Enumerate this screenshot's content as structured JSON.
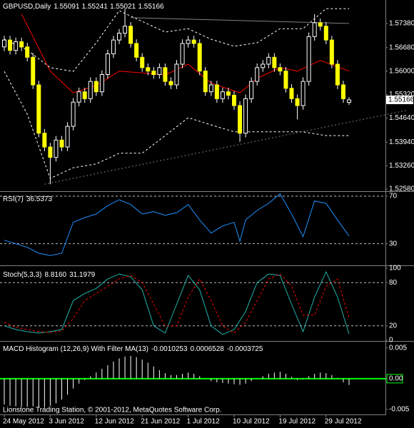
{
  "chart_data": [
    {
      "type": "candlestick",
      "title": "GBPUSD,Daily",
      "categories": [
        "24 May 2012",
        null,
        null,
        null,
        null,
        null,
        null,
        null,
        "3 Jun 2012",
        null,
        null,
        null,
        null,
        null,
        null,
        null,
        "12 Jun 2012",
        null,
        null,
        null,
        null,
        null,
        null,
        null,
        "21 Jun 2012",
        null,
        null,
        null,
        null,
        null,
        null,
        null,
        "1 Jul 2012",
        null,
        null,
        null,
        null,
        null,
        null,
        null,
        "10 Jul 2012",
        null,
        null,
        null,
        null,
        null,
        null,
        null,
        "19 Jul 2012",
        null,
        null,
        null,
        null,
        null,
        null,
        null,
        "29 Jul 2012",
        null,
        null,
        null,
        null
      ],
      "opens": [
        1.567,
        1.569,
        1.566,
        1.5685,
        1.567,
        1.564,
        1.556,
        1.542,
        1.538,
        1.535,
        1.54,
        1.538,
        1.544,
        1.551,
        1.554,
        1.552,
        1.557,
        1.554,
        1.559,
        1.565,
        1.569,
        1.571,
        1.573,
        1.568,
        1.564,
        1.561,
        1.56,
        1.559,
        1.561,
        1.557,
        1.556,
        1.562,
        1.568,
        1.569,
        1.568,
        1.56,
        1.554,
        1.556,
        1.552,
        1.554,
        1.553,
        1.55,
        1.542,
        1.552,
        1.557,
        1.561,
        1.562,
        1.564,
        1.561,
        1.56,
        1.555,
        1.552,
        1.55,
        1.557,
        1.57,
        1.574,
        1.573,
        1.569,
        1.562,
        1.556,
        1.55091
      ],
      "highs": [
        1.5702,
        1.5702,
        1.5697,
        1.5697,
        1.5682,
        1.5652,
        1.5572,
        1.5432,
        1.5392,
        1.5412,
        1.5412,
        1.5452,
        1.5522,
        1.5552,
        1.5552,
        1.5582,
        1.5582,
        1.5602,
        1.5662,
        1.5702,
        1.5722,
        1.578,
        1.5742,
        1.5692,
        1.5652,
        1.5622,
        1.5612,
        1.5622,
        1.5622,
        1.5582,
        1.5632,
        1.5692,
        1.5702,
        1.5702,
        1.5692,
        1.5612,
        1.5572,
        1.5572,
        1.5552,
        1.5552,
        1.5542,
        1.5512,
        1.5532,
        1.5582,
        1.5622,
        1.5632,
        1.5652,
        1.5652,
        1.5622,
        1.5612,
        1.5562,
        1.5532,
        1.5582,
        1.5712,
        1.5765,
        1.5752,
        1.5742,
        1.5702,
        1.5632,
        1.5572,
        1.55241
      ],
      "lows": [
        1.5658,
        1.5648,
        1.5648,
        1.5658,
        1.5628,
        1.5548,
        1.5408,
        1.5368,
        1.5272,
        1.5338,
        1.5368,
        1.5368,
        1.5428,
        1.5498,
        1.5508,
        1.5508,
        1.5528,
        1.5528,
        1.5578,
        1.5638,
        1.5678,
        1.5698,
        1.5668,
        1.5628,
        1.5598,
        1.5588,
        1.5578,
        1.5578,
        1.5558,
        1.5548,
        1.5548,
        1.5608,
        1.5668,
        1.5668,
        1.5588,
        1.5528,
        1.5528,
        1.5508,
        1.5508,
        1.5518,
        1.5488,
        1.5395,
        1.5408,
        1.5508,
        1.5558,
        1.5598,
        1.5608,
        1.5598,
        1.5588,
        1.5538,
        1.5508,
        1.546,
        1.5488,
        1.5558,
        1.5688,
        1.5718,
        1.5678,
        1.5608,
        1.5548,
        1.5508,
        1.55021
      ],
      "closes": [
        1.569,
        1.566,
        1.5685,
        1.567,
        1.564,
        1.556,
        1.542,
        1.538,
        1.535,
        1.54,
        1.538,
        1.544,
        1.551,
        1.554,
        1.552,
        1.557,
        1.554,
        1.559,
        1.565,
        1.569,
        1.571,
        1.573,
        1.568,
        1.564,
        1.561,
        1.56,
        1.559,
        1.561,
        1.557,
        1.556,
        1.562,
        1.568,
        1.569,
        1.568,
        1.56,
        1.554,
        1.556,
        1.552,
        1.554,
        1.553,
        1.55,
        1.542,
        1.552,
        1.557,
        1.561,
        1.562,
        1.564,
        1.561,
        1.56,
        1.555,
        1.552,
        1.55,
        1.557,
        1.57,
        1.574,
        1.573,
        1.569,
        1.562,
        1.556,
        1.552,
        1.55166
      ],
      "up_color": "#000000",
      "down_color": "#ffff00",
      "wick_color": "#ffffff",
      "overlays": [
        {
          "color": "#ff0000",
          "style": "solid",
          "x": [
            3,
            8,
            12,
            16,
            20,
            24,
            28,
            32,
            36,
            41,
            44,
            48,
            51,
            55,
            60
          ],
          "values": [
            1.5765,
            1.56,
            1.5537,
            1.5558,
            1.56,
            1.5595,
            1.5589,
            1.562,
            1.5565,
            1.5537,
            1.5579,
            1.561,
            1.56,
            1.5631,
            1.56
          ]
        },
        {
          "color": "#ffffff",
          "style": "dashed",
          "x": [
            0,
            4,
            8,
            12,
            16,
            20,
            24,
            28,
            32,
            36,
            40,
            44,
            48,
            52,
            56,
            60
          ],
          "values": [
            1.5692,
            1.5661,
            1.561,
            1.5599,
            1.5682,
            1.5775,
            1.5744,
            1.5713,
            1.5723,
            1.5692,
            1.5672,
            1.5682,
            1.5723,
            1.5723,
            1.5781,
            1.5781
          ]
        },
        {
          "color": "#ffffff",
          "style": "dashed",
          "x": [
            0,
            4,
            8,
            12,
            16,
            20,
            24,
            28,
            32,
            36,
            40,
            44,
            48,
            52,
            56,
            60
          ],
          "values": [
            1.5599,
            1.5475,
            1.5289,
            1.532,
            1.5331,
            1.5362,
            1.5362,
            1.5413,
            1.5465,
            1.5444,
            1.5424,
            1.5424,
            1.5424,
            1.5424,
            1.5413,
            1.5413
          ]
        },
        {
          "color": "#808080",
          "style": "solid",
          "x": [
            22,
            60
          ],
          "values": [
            1.5755,
            1.5738
          ]
        },
        {
          "color": "#808080",
          "style": "dotted",
          "x": [
            7,
            70
          ],
          "values": [
            1.5272,
            1.5486
          ]
        }
      ],
      "ylim": [
        1.5252,
        1.5806
      ],
      "yticks": [
        {
          "value": 1.5738,
          "label": "1.57380"
        },
        {
          "value": 1.5668,
          "label": "1.56680"
        },
        {
          "value": 1.56,
          "label": "1.56000"
        },
        {
          "value": 1.5532,
          "label": "1.55320"
        },
        {
          "value": 1.5464,
          "label": "1.54640"
        },
        {
          "value": 1.5394,
          "label": "1.53940"
        },
        {
          "value": 1.5326,
          "label": "1.53260"
        },
        {
          "value": 1.5258,
          "label": "1.52580"
        }
      ]
    },
    {
      "type": "line",
      "title": "RSI(7)",
      "series": [
        {
          "color": "#1e90ff",
          "x": [
            0,
            2,
            4,
            6,
            8,
            10,
            12,
            14,
            16,
            18,
            20,
            22,
            24,
            26,
            28,
            30,
            32,
            34,
            36,
            38,
            40,
            41,
            42,
            44,
            46,
            48,
            50,
            52,
            54,
            56,
            58,
            60
          ],
          "values": [
            33,
            30,
            27,
            22,
            20,
            22,
            48,
            52,
            55,
            62,
            67,
            63,
            55,
            57,
            54,
            56,
            63,
            50,
            39,
            45,
            48,
            32,
            50,
            58,
            64,
            72,
            55,
            36,
            66,
            64,
            50,
            36.5373
          ]
        }
      ],
      "ylim": [
        13,
        73
      ],
      "yticks": [
        30,
        70
      ],
      "levels": [
        30,
        70
      ]
    },
    {
      "type": "line",
      "title": "Stoch(5,3,3)",
      "series": [
        {
          "color": "#20b2aa",
          "style": "solid",
          "x": [
            0,
            2,
            4,
            6,
            8,
            10,
            12,
            14,
            16,
            18,
            20,
            22,
            24,
            26,
            28,
            30,
            32,
            34,
            36,
            38,
            40,
            42,
            44,
            46,
            48,
            50,
            52,
            54,
            56,
            58,
            60
          ],
          "values": [
            20,
            15,
            12,
            10,
            12,
            15,
            55,
            65,
            72,
            85,
            92,
            88,
            70,
            20,
            10,
            50,
            90,
            70,
            20,
            8,
            15,
            40,
            80,
            92,
            90,
            50,
            12,
            60,
            95,
            60,
            8.816
          ],
          "value_labels": [
            null,
            null,
            null,
            null,
            null,
            null,
            null,
            null,
            null,
            null,
            null,
            null,
            null,
            null,
            null,
            null,
            null,
            null,
            null,
            null,
            null,
            null,
            null,
            null,
            null,
            null,
            null,
            null,
            null,
            null,
            "8.8160"
          ]
        },
        {
          "color": "#ff0000",
          "style": "dashed",
          "x": [
            0,
            2,
            4,
            6,
            8,
            10,
            12,
            14,
            16,
            18,
            20,
            22,
            24,
            26,
            28,
            30,
            32,
            34,
            36,
            38,
            40,
            42,
            44,
            46,
            48,
            50,
            52,
            54,
            56,
            58,
            60
          ],
          "values": [
            25,
            18,
            15,
            12,
            11,
            13,
            30,
            55,
            65,
            75,
            85,
            90,
            80,
            50,
            20,
            20,
            60,
            85,
            55,
            20,
            10,
            25,
            55,
            85,
            92,
            75,
            35,
            35,
            75,
            85,
            31.1979
          ]
        }
      ],
      "ylim": [
        0,
        100
      ],
      "yticks": [
        0,
        20,
        80,
        100
      ],
      "levels": [
        20,
        80
      ]
    },
    {
      "type": "bar",
      "title": "MACD Histogram (12,26,9) With Filter MA(13)",
      "values": [
        -0.0042,
        -0.0044,
        -0.0045,
        -0.0046,
        -0.0046,
        -0.0045,
        -0.0046,
        -0.0047,
        -0.0044,
        -0.004,
        -0.0034,
        -0.0026,
        -0.0016,
        -0.0008,
        -0.0002,
        0.0004,
        0.001,
        0.0016,
        0.0022,
        0.0028,
        0.0033,
        0.0036,
        0.0037,
        0.0035,
        0.0031,
        0.0026,
        0.002,
        0.0014,
        0.0009,
        0.0006,
        0.0006,
        0.0008,
        0.001,
        0.0008,
        0.0004,
        0.0,
        -0.0004,
        -0.0006,
        -0.0007,
        -0.0008,
        -0.0009,
        -0.001,
        -0.0008,
        -0.0004,
        0.0,
        0.0004,
        0.0008,
        0.001,
        0.0011,
        0.0008,
        0.0003,
        -0.0002,
        -0.0001,
        0.0004,
        0.0008,
        0.001,
        0.0009,
        0.0006,
        0.0001,
        -0.0006,
        -0.0010253
      ],
      "readouts": [
        0.0006528,
        -0.0003725
      ],
      "color": "#ffffff",
      "zero_color": "#00ff00",
      "ylim": [
        -0.0057,
        0.0059
      ],
      "yticks": [
        0.005,
        {
          "value": 0,
          "label": "0.00"
        },
        -0.005
      ],
      "footer": "Lionstone Trading Station, © 2001-2012, MetaQuotes Software Corp."
    }
  ]
}
